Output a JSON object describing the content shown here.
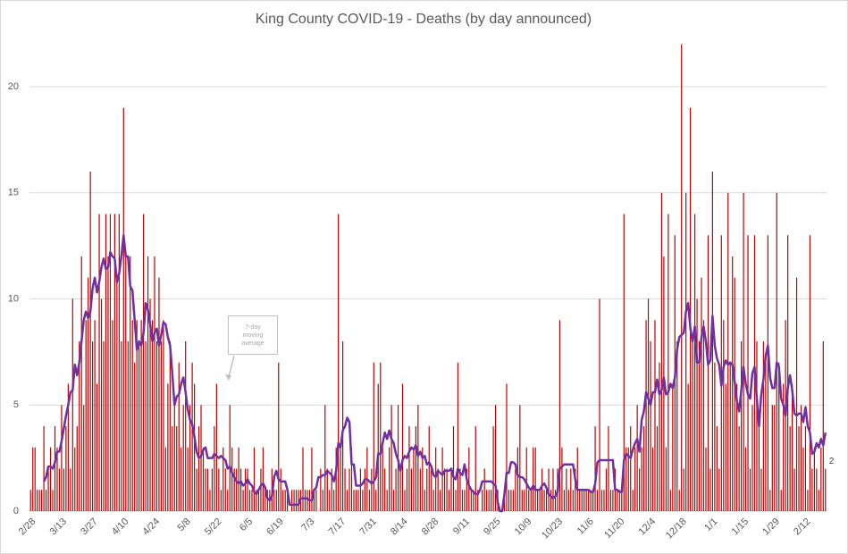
{
  "chart_data": {
    "type": "bar",
    "title": "King County COVID-19 - Deaths (by day announced)",
    "annotation": "7-day moving average",
    "categories": [
      "2/28",
      null,
      null,
      null,
      null,
      null,
      null,
      null,
      null,
      null,
      null,
      null,
      null,
      null,
      "3/13",
      null,
      null,
      null,
      null,
      null,
      null,
      null,
      null,
      null,
      null,
      null,
      null,
      null,
      "3/27",
      null,
      null,
      null,
      null,
      null,
      null,
      null,
      null,
      null,
      null,
      null,
      null,
      null,
      "4/10",
      null,
      null,
      null,
      null,
      null,
      null,
      null,
      null,
      null,
      null,
      null,
      null,
      null,
      "4/24",
      null,
      null,
      null,
      null,
      null,
      null,
      null,
      null,
      null,
      null,
      null,
      null,
      null,
      "5/8",
      null,
      null,
      null,
      null,
      null,
      null,
      null,
      null,
      null,
      null,
      null,
      null,
      null,
      "5/22",
      null,
      null,
      null,
      null,
      null,
      null,
      null,
      null,
      null,
      null,
      null,
      null,
      null,
      "6/5",
      null,
      null,
      null,
      null,
      null,
      null,
      null,
      null,
      null,
      null,
      null,
      null,
      null,
      "6/19",
      null,
      null,
      null,
      null,
      null,
      null,
      null,
      null,
      null,
      null,
      null,
      null,
      null,
      "7/3",
      null,
      null,
      null,
      null,
      null,
      null,
      null,
      null,
      null,
      null,
      null,
      null,
      null,
      "7/17",
      null,
      null,
      null,
      null,
      null,
      null,
      null,
      null,
      null,
      null,
      null,
      null,
      null,
      "7/31",
      null,
      null,
      null,
      null,
      null,
      null,
      null,
      null,
      null,
      null,
      null,
      null,
      null,
      "8/14",
      null,
      null,
      null,
      null,
      null,
      null,
      null,
      null,
      null,
      null,
      null,
      null,
      null,
      "8/28",
      null,
      null,
      null,
      null,
      null,
      null,
      null,
      null,
      null,
      null,
      null,
      null,
      null,
      "9/11",
      null,
      null,
      null,
      null,
      null,
      null,
      null,
      null,
      null,
      null,
      null,
      null,
      null,
      "9/25",
      null,
      null,
      null,
      null,
      null,
      null,
      null,
      null,
      null,
      null,
      null,
      null,
      null,
      "10/9",
      null,
      null,
      null,
      null,
      null,
      null,
      null,
      null,
      null,
      null,
      null,
      null,
      null,
      "10/23",
      null,
      null,
      null,
      null,
      null,
      null,
      null,
      null,
      null,
      null,
      null,
      null,
      null,
      "11/6",
      null,
      null,
      null,
      null,
      null,
      null,
      null,
      null,
      null,
      null,
      null,
      null,
      null,
      "11/20",
      null,
      null,
      null,
      null,
      null,
      null,
      null,
      null,
      null,
      null,
      null,
      null,
      null,
      "12/4",
      null,
      null,
      null,
      null,
      null,
      null,
      null,
      null,
      null,
      null,
      null,
      null,
      null,
      "12/18",
      null,
      null,
      null,
      null,
      null,
      null,
      null,
      null,
      null,
      null,
      null,
      null,
      null,
      "1/1",
      null,
      null,
      null,
      null,
      null,
      null,
      null,
      null,
      null,
      null,
      null,
      null,
      null,
      "1/15",
      null,
      null,
      null,
      null,
      null,
      null,
      null,
      null,
      null,
      null,
      null,
      null,
      null,
      "1/29",
      null,
      null,
      null,
      null,
      null,
      null,
      null,
      null,
      null,
      null,
      null,
      null,
      null,
      "2/12",
      null,
      null,
      null,
      null,
      null,
      null,
      null,
      null,
      null
    ],
    "series": [
      {
        "type": "bar",
        "color": "#c00000",
        "values": [
          1,
          3,
          3,
          1,
          1,
          1,
          4,
          1,
          2,
          3,
          1,
          4,
          3,
          2,
          5,
          2,
          4,
          6,
          2,
          10,
          3,
          4,
          8,
          12,
          5,
          9,
          11,
          16,
          8,
          9,
          6,
          14,
          10,
          8,
          14,
          12,
          14,
          9,
          14,
          11,
          14,
          8,
          19,
          12,
          8,
          12,
          9,
          7,
          9,
          8,
          9,
          14,
          8,
          12,
          10,
          9,
          12,
          8,
          11,
          8,
          9,
          3,
          6,
          8,
          4,
          5,
          4,
          7,
          3,
          5,
          8,
          3,
          5,
          7,
          6,
          2,
          4,
          5,
          3,
          2,
          2,
          1,
          2,
          4,
          6,
          2,
          1,
          3,
          2,
          1,
          5,
          3,
          2,
          2,
          3,
          2,
          1,
          2,
          2,
          1,
          1,
          3,
          1,
          1,
          2,
          3,
          1,
          1,
          1,
          2,
          1,
          1,
          7,
          2,
          1,
          1,
          1,
          0,
          1,
          1,
          1,
          1,
          1,
          3,
          1,
          1,
          1,
          3,
          1,
          1,
          0,
          2,
          1,
          5,
          2,
          1,
          2,
          1,
          3,
          14,
          3,
          8,
          2,
          1,
          2,
          3,
          1,
          1,
          1,
          2,
          1,
          2,
          3,
          1,
          2,
          7,
          1,
          6,
          7,
          3,
          2,
          1,
          3,
          5,
          1,
          2,
          5,
          2,
          6,
          1,
          2,
          4,
          2,
          3,
          4,
          5,
          2,
          3,
          1,
          2,
          4,
          2,
          1,
          3,
          2,
          1,
          3,
          2,
          2,
          1,
          2,
          4,
          1,
          7,
          2,
          1,
          1,
          2,
          3,
          1,
          1,
          4,
          1,
          0,
          1,
          2,
          1,
          1,
          1,
          4,
          5,
          1,
          0,
          0,
          1,
          6,
          1,
          1,
          1,
          2,
          3,
          5,
          1,
          1,
          3,
          1,
          1,
          3,
          3,
          1,
          1,
          2,
          1,
          1,
          2,
          1,
          2,
          1,
          2,
          9,
          3,
          1,
          2,
          1,
          2,
          1,
          2,
          3,
          1,
          1,
          1,
          1,
          1,
          1,
          1,
          4,
          1,
          10,
          1,
          1,
          2,
          4,
          1,
          1,
          2,
          1,
          1,
          1,
          14,
          3,
          3,
          4,
          1,
          3,
          5,
          2,
          3,
          4,
          9,
          10,
          8,
          3,
          9,
          4,
          7,
          15,
          12,
          3,
          14,
          1,
          6,
          13,
          8,
          1,
          22,
          2,
          15,
          6,
          19,
          8,
          14,
          10,
          8,
          11,
          9,
          3,
          13,
          2,
          16,
          7,
          4,
          2,
          13,
          9,
          6,
          15,
          7,
          12,
          11,
          6,
          4,
          8,
          15,
          3,
          13,
          2,
          5,
          13,
          8,
          4,
          2,
          8,
          7,
          13,
          1,
          5,
          5,
          15,
          7,
          1,
          6,
          9,
          13,
          4,
          6,
          2,
          11,
          4,
          5,
          3,
          4,
          1,
          13,
          2,
          3,
          2,
          1,
          3,
          8,
          2
        ]
      },
      {
        "type": "line",
        "color": "#7030a0",
        "values": [
          null,
          null,
          null,
          null,
          null,
          null,
          1.4,
          1.6,
          2.1,
          2.1,
          2.0,
          2.3,
          2.8,
          2.8,
          3.3,
          3.9,
          4.5,
          5.0,
          5.6,
          5.7,
          6.9,
          6.4,
          7.0,
          8.0,
          9.0,
          9.4,
          9.1,
          9.4,
          10.5,
          11.0,
          10.3,
          10.8,
          11.5,
          11.9,
          11.4,
          11.5,
          12.2,
          12.0,
          11.9,
          10.8,
          11.2,
          12.0,
          13.0,
          12.0,
          12.0,
          10.6,
          10.4,
          9.0,
          7.6,
          8.0,
          7.8,
          8.4,
          9.8,
          9.5,
          8.8,
          8.0,
          8.4,
          8.6,
          7.8,
          8.3,
          8.9,
          8.8,
          8.2,
          7.8,
          6.5,
          5.0,
          5.4,
          5.5,
          6.0,
          6.3,
          5.6,
          4.8,
          4.3,
          4.1,
          3.5,
          2.8,
          2.5,
          2.6,
          2.9,
          3.0,
          2.5,
          2.5,
          2.5,
          2.7,
          2.6,
          2.5,
          2.6,
          2.5,
          2.4,
          2.0,
          2.1,
          1.8,
          1.6,
          1.4,
          1.3,
          1.4,
          1.2,
          1.3,
          1.5,
          1.3,
          1.2,
          0.9,
          0.8,
          1.0,
          1.2,
          1.3,
          1.1,
          0.6,
          0.5,
          0.7,
          1.6,
          1.9,
          1.5,
          1.4,
          1.4,
          1.4,
          1.0,
          0.3,
          0.3,
          0.3,
          0.3,
          0.3,
          0.6,
          0.6,
          0.6,
          0.6,
          0.5,
          0.5,
          1.0,
          1.1,
          1.6,
          1.6,
          1.7,
          1.7,
          1.9,
          1.8,
          1.7,
          1.4,
          1.9,
          3.2,
          3.0,
          3.8,
          4.0,
          4.4,
          4.2,
          2.2,
          2.2,
          1.2,
          1.2,
          1.2,
          1.3,
          1.5,
          1.5,
          1.4,
          1.3,
          1.4,
          1.6,
          2.7,
          2.7,
          3.2,
          3.7,
          3.4,
          3.8,
          3.4,
          3.2,
          2.7,
          2.4,
          1.9,
          2.4,
          2.6,
          2.5,
          2.8,
          3.0,
          2.9,
          3.1,
          2.6,
          2.8,
          2.5,
          2.6,
          2.2,
          2.3,
          2.1,
          1.7,
          1.6,
          1.9,
          1.8,
          1.7,
          1.9,
          1.9,
          1.9,
          2.0,
          1.6,
          1.5,
          2.0,
          1.8,
          1.7,
          2.2,
          1.5,
          1.2,
          1.0,
          0.9,
          0.8,
          0.8,
          1.0,
          1.4,
          1.4,
          1.4,
          1.4,
          1.4,
          1.3,
          1.2,
          0.4,
          0.0,
          0.0,
          0.8,
          1.8,
          1.8,
          2.3,
          2.3,
          2.2,
          1.7,
          1.6,
          1.6,
          1.5,
          1.3,
          1.1,
          1.0,
          1.2,
          1.0,
          1.0,
          1.0,
          1.2,
          1.3,
          1.1,
          0.8,
          0.7,
          0.6,
          0.7,
          0.9,
          2.0,
          2.1,
          2.2,
          2.2,
          2.2,
          2.2,
          2.2,
          1.5,
          1.0,
          1.0,
          1.0,
          1.0,
          1.0,
          1.0,
          0.9,
          0.9,
          1.3,
          2.3,
          2.4,
          2.4,
          2.4,
          2.4,
          2.4,
          2.4,
          2.4,
          1.0,
          1.0,
          0.9,
          0.9,
          2.4,
          2.7,
          2.6,
          2.5,
          2.9,
          3.2,
          3.4,
          2.8,
          4.3,
          4.7,
          5.6,
          5.3,
          5.0,
          5.6,
          5.6,
          6.2,
          5.5,
          5.7,
          6.3,
          5.5,
          5.6,
          6.0,
          5.8,
          6.3,
          7.6,
          8.2,
          8.3,
          8.4,
          9.4,
          9.8,
          8.6,
          8.0,
          8.7,
          7.0,
          7.0,
          8.2,
          8.7,
          8.0,
          6.9,
          7.1,
          9.2,
          7.8,
          7.2,
          6.9,
          5.9,
          6.8,
          7.1,
          6.9,
          7.0,
          6.9,
          6.1,
          5.2,
          4.7,
          5.7,
          6.8,
          6.0,
          5.5,
          5.3,
          6.5,
          6.8,
          5.3,
          4.0,
          5.5,
          6.2,
          7.3,
          7.8,
          6.3,
          5.8,
          5.8,
          7.0,
          6.8,
          5.3,
          5.0,
          4.5,
          5.8,
          6.4,
          5.7,
          4.6,
          4.5,
          4.6,
          4.6,
          4.2,
          4.9,
          4.0,
          3.7,
          2.7,
          2.8,
          3.2,
          3.0,
          3.4,
          3.1,
          3.7
        ]
      }
    ],
    "labeled_point": 359,
    "ylim": [
      0,
      22.4
    ],
    "yticks": [
      0,
      5,
      10,
      15,
      20
    ],
    "grid": true
  }
}
